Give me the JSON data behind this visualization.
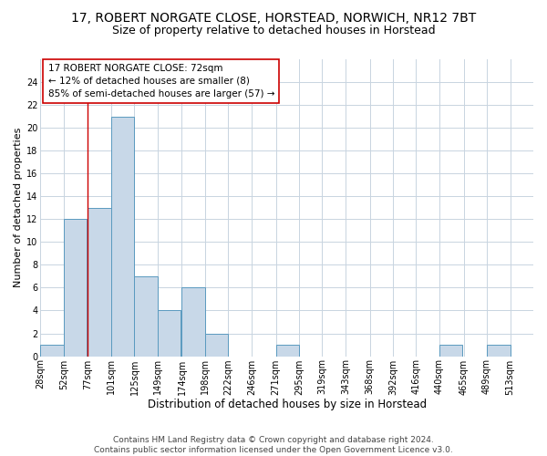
{
  "title_line1": "17, ROBERT NORGATE CLOSE, HORSTEAD, NORWICH, NR12 7BT",
  "title_line2": "Size of property relative to detached houses in Horstead",
  "xlabel": "Distribution of detached houses by size in Horstead",
  "ylabel": "Number of detached properties",
  "footer_line1": "Contains HM Land Registry data © Crown copyright and database right 2024.",
  "footer_line2": "Contains public sector information licensed under the Open Government Licence v3.0.",
  "annotation_line1": "17 ROBERT NORGATE CLOSE: 72sqm",
  "annotation_line2": "← 12% of detached houses are smaller (8)",
  "annotation_line3": "85% of semi-detached houses are larger (57) →",
  "property_line_x": 77,
  "bar_edges": [
    28,
    52,
    77,
    101,
    125,
    149,
    174,
    198,
    222,
    246,
    271,
    295,
    319,
    343,
    368,
    392,
    416,
    440,
    465,
    489,
    513
  ],
  "bar_heights": [
    1,
    12,
    13,
    21,
    7,
    4,
    6,
    2,
    0,
    0,
    1,
    0,
    0,
    0,
    0,
    0,
    0,
    1,
    0,
    1,
    0
  ],
  "bar_color": "#c8d8e8",
  "bar_edge_color": "#5a9abf",
  "property_line_color": "#cc0000",
  "annotation_box_color": "#cc0000",
  "annotation_box_fill": "#ffffff",
  "ylim": [
    0,
    26
  ],
  "ytick_step": 2,
  "background_color": "#ffffff",
  "grid_color": "#c8d4e0",
  "title1_fontsize": 10,
  "title2_fontsize": 9,
  "xlabel_fontsize": 8.5,
  "ylabel_fontsize": 8,
  "tick_fontsize": 7,
  "annotation_fontsize": 7.5,
  "footer_fontsize": 6.5
}
